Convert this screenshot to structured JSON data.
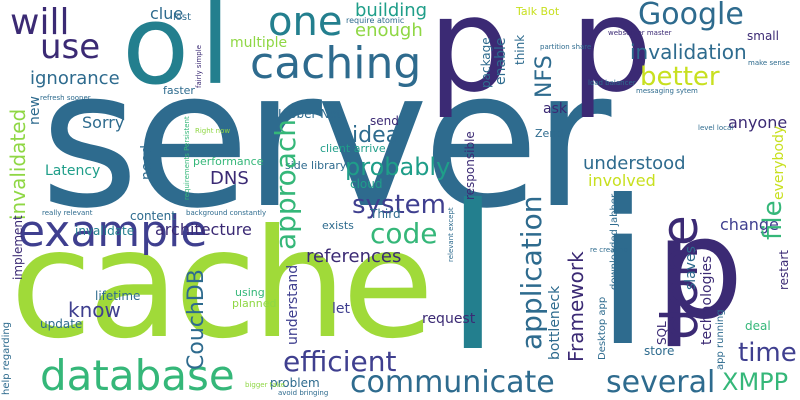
{
  "background_color": "#ffffff",
  "palette": {
    "dark_purple": "#3b2a74",
    "purple": "#3f3f8f",
    "blue": "#2e6b8e",
    "teal": "#237f8e",
    "green_teal": "#1f9e89",
    "green": "#35b779",
    "lime": "#8fd744",
    "yellow_lime": "#c8e020"
  },
  "words": [
    {
      "text": "server",
      "color": "#2e6b8e"
    },
    {
      "text": "cache",
      "color": "#a0da39"
    },
    {
      "text": "p",
      "color": "#3b2a74"
    },
    {
      "text": "p",
      "color": "#3b2a74"
    },
    {
      "text": "p",
      "color": "#3b2a74"
    },
    {
      "text": "l",
      "color": "#237f8e"
    },
    {
      "text": "i",
      "color": "#2e6b8e"
    },
    {
      "text": "o",
      "color": "#237f8e"
    },
    {
      "text": "l",
      "color": "#237f8e"
    },
    {
      "text": "database",
      "color": "#35b779"
    },
    {
      "text": "example",
      "color": "#3f3f8f"
    },
    {
      "text": "done",
      "color": "#3b2a74"
    },
    {
      "text": "will",
      "color": "#3b2a74"
    },
    {
      "text": "use",
      "color": "#3b2a74"
    },
    {
      "text": "caching",
      "color": "#2e6b8e"
    },
    {
      "text": "one",
      "color": "#237f8e"
    },
    {
      "text": "Google",
      "color": "#2e6b8e"
    },
    {
      "text": "communicate",
      "color": "#2e6b8e"
    },
    {
      "text": "efficient",
      "color": "#3f3f8f"
    },
    {
      "text": "several",
      "color": "#2e6b8e"
    },
    {
      "text": "application",
      "color": "#2e6b8e"
    },
    {
      "text": "approach",
      "color": "#35b779"
    },
    {
      "text": "code",
      "color": "#35b779"
    },
    {
      "text": "system",
      "color": "#3f3f8f"
    },
    {
      "text": "probably",
      "color": "#1f9e89"
    },
    {
      "text": "Framework",
      "color": "#3b2a74"
    },
    {
      "text": "time",
      "color": "#3f3f8f"
    },
    {
      "text": "XMPP",
      "color": "#35b779"
    },
    {
      "text": "invalidation",
      "color": "#2e6b8e"
    },
    {
      "text": "better",
      "color": "#c8e020"
    },
    {
      "text": "NFS",
      "color": "#2e6b8e"
    },
    {
      "text": "building",
      "color": "#1f9e89"
    },
    {
      "text": "enough",
      "color": "#8fd744"
    },
    {
      "text": "idea",
      "color": "#2e6b8e"
    },
    {
      "text": "file",
      "color": "#35b779"
    },
    {
      "text": "understood",
      "color": "#2e6b8e"
    },
    {
      "text": "involved",
      "color": "#c8e020"
    },
    {
      "text": "CouchDB",
      "color": "#2e6b8e"
    },
    {
      "text": "know",
      "color": "#3f3f8f"
    },
    {
      "text": "references",
      "color": "#3b2a74"
    },
    {
      "text": "invalidated",
      "color": "#8fd744"
    },
    {
      "text": "ignorance",
      "color": "#2e6b8e"
    },
    {
      "text": "Latency",
      "color": "#1f9e89"
    },
    {
      "text": "Sorry",
      "color": "#2e6b8e"
    },
    {
      "text": "multiple",
      "color": "#8fd744"
    },
    {
      "text": "clue",
      "color": "#2e6b8e"
    },
    {
      "text": "anyone",
      "color": "#3b2a74"
    },
    {
      "text": "change",
      "color": "#3f3f8f"
    },
    {
      "text": "everybody",
      "color": "#c8e020"
    },
    {
      "text": "technologies",
      "color": "#3b2a74"
    },
    {
      "text": "bottleneck",
      "color": "#2e6b8e"
    },
    {
      "text": "slaves",
      "color": "#2e6b8e"
    },
    {
      "text": "DNS",
      "color": "#3b2a74"
    },
    {
      "text": "cloud",
      "color": "#1f9e89"
    },
    {
      "text": "send",
      "color": "#3b2a74"
    },
    {
      "text": "architecture",
      "color": "#3b2a74"
    },
    {
      "text": "invalidate",
      "color": "#237f8e"
    },
    {
      "text": "update",
      "color": "#2e6b8e"
    },
    {
      "text": "lifetime",
      "color": "#2e6b8e"
    },
    {
      "text": "content",
      "color": "#2e6b8e"
    },
    {
      "text": "need",
      "color": "#2e6b8e"
    },
    {
      "text": "new",
      "color": "#2e6b8e"
    },
    {
      "text": "implement",
      "color": "#3b2a74"
    },
    {
      "text": "understand",
      "color": "#3f3f8f"
    },
    {
      "text": "request",
      "color": "#3b2a74"
    },
    {
      "text": "let",
      "color": "#3f3f8f"
    },
    {
      "text": "problem",
      "color": "#2e6b8e"
    },
    {
      "text": "store",
      "color": "#2e6b8e"
    },
    {
      "text": "SQL",
      "color": "#3b2a74"
    },
    {
      "text": "restart",
      "color": "#3b2a74"
    },
    {
      "text": "deal",
      "color": "#35b779"
    },
    {
      "text": "small",
      "color": "#3b2a74"
    },
    {
      "text": "ask",
      "color": "#3b2a74"
    },
    {
      "text": "enable",
      "color": "#2e6b8e"
    },
    {
      "text": "package",
      "color": "#2e6b8e"
    },
    {
      "text": "think",
      "color": "#2e6b8e"
    },
    {
      "text": "Zend",
      "color": "#2e6b8e"
    },
    {
      "text": "Third",
      "color": "#2e6b8e"
    },
    {
      "text": "responsible",
      "color": "#3b2a74"
    },
    {
      "text": "exists",
      "color": "#2e6b8e"
    },
    {
      "text": "Jabber Net",
      "color": "#2e6b8e"
    },
    {
      "text": "client arrive",
      "color": "#1f9e89"
    },
    {
      "text": "side library",
      "color": "#2e6b8e"
    },
    {
      "text": "performance",
      "color": "#35b779"
    },
    {
      "text": "faster",
      "color": "#2e6b8e"
    },
    {
      "text": "using",
      "color": "#35b779"
    },
    {
      "text": "planned",
      "color": "#8fd744"
    },
    {
      "text": "Talk Bot",
      "color": "#c8e020"
    },
    {
      "text": "lost",
      "color": "#2e6b8e"
    },
    {
      "text": "fairly simple",
      "color": "#3b2a74"
    },
    {
      "text": "require atomic",
      "color": "#2e6b8e"
    },
    {
      "text": "partition share",
      "color": "#2e6b8e"
    },
    {
      "text": "webserver master",
      "color": "#3b2a74"
    },
    {
      "text": "make sense",
      "color": "#2e6b8e"
    },
    {
      "text": "load balancer",
      "color": "#2e6b8e"
    },
    {
      "text": "messaging sytem",
      "color": "#2e6b8e"
    },
    {
      "text": "level local",
      "color": "#2e6b8e"
    },
    {
      "text": "Right now",
      "color": "#8fd744"
    },
    {
      "text": "requirements Persistent",
      "color": "#35b779"
    },
    {
      "text": "refresh sooner",
      "color": "#2e6b8e"
    },
    {
      "text": "really relevant",
      "color": "#2e6b8e"
    },
    {
      "text": "background constantly",
      "color": "#2e6b8e"
    },
    {
      "text": "relevant except",
      "color": "#2e6b8e"
    },
    {
      "text": "re creating",
      "color": "#2e6b8e"
    },
    {
      "text": "Desktop app",
      "color": "#2e6b8e"
    },
    {
      "text": "downloaded Jabber",
      "color": "#2e6b8e"
    },
    {
      "text": "app running",
      "color": "#2e6b8e"
    },
    {
      "text": "help regarding",
      "color": "#2e6b8e"
    },
    {
      "text": "bigger take",
      "color": "#8fd744"
    },
    {
      "text": "avoid bringing",
      "color": "#2e6b8e"
    }
  ]
}
